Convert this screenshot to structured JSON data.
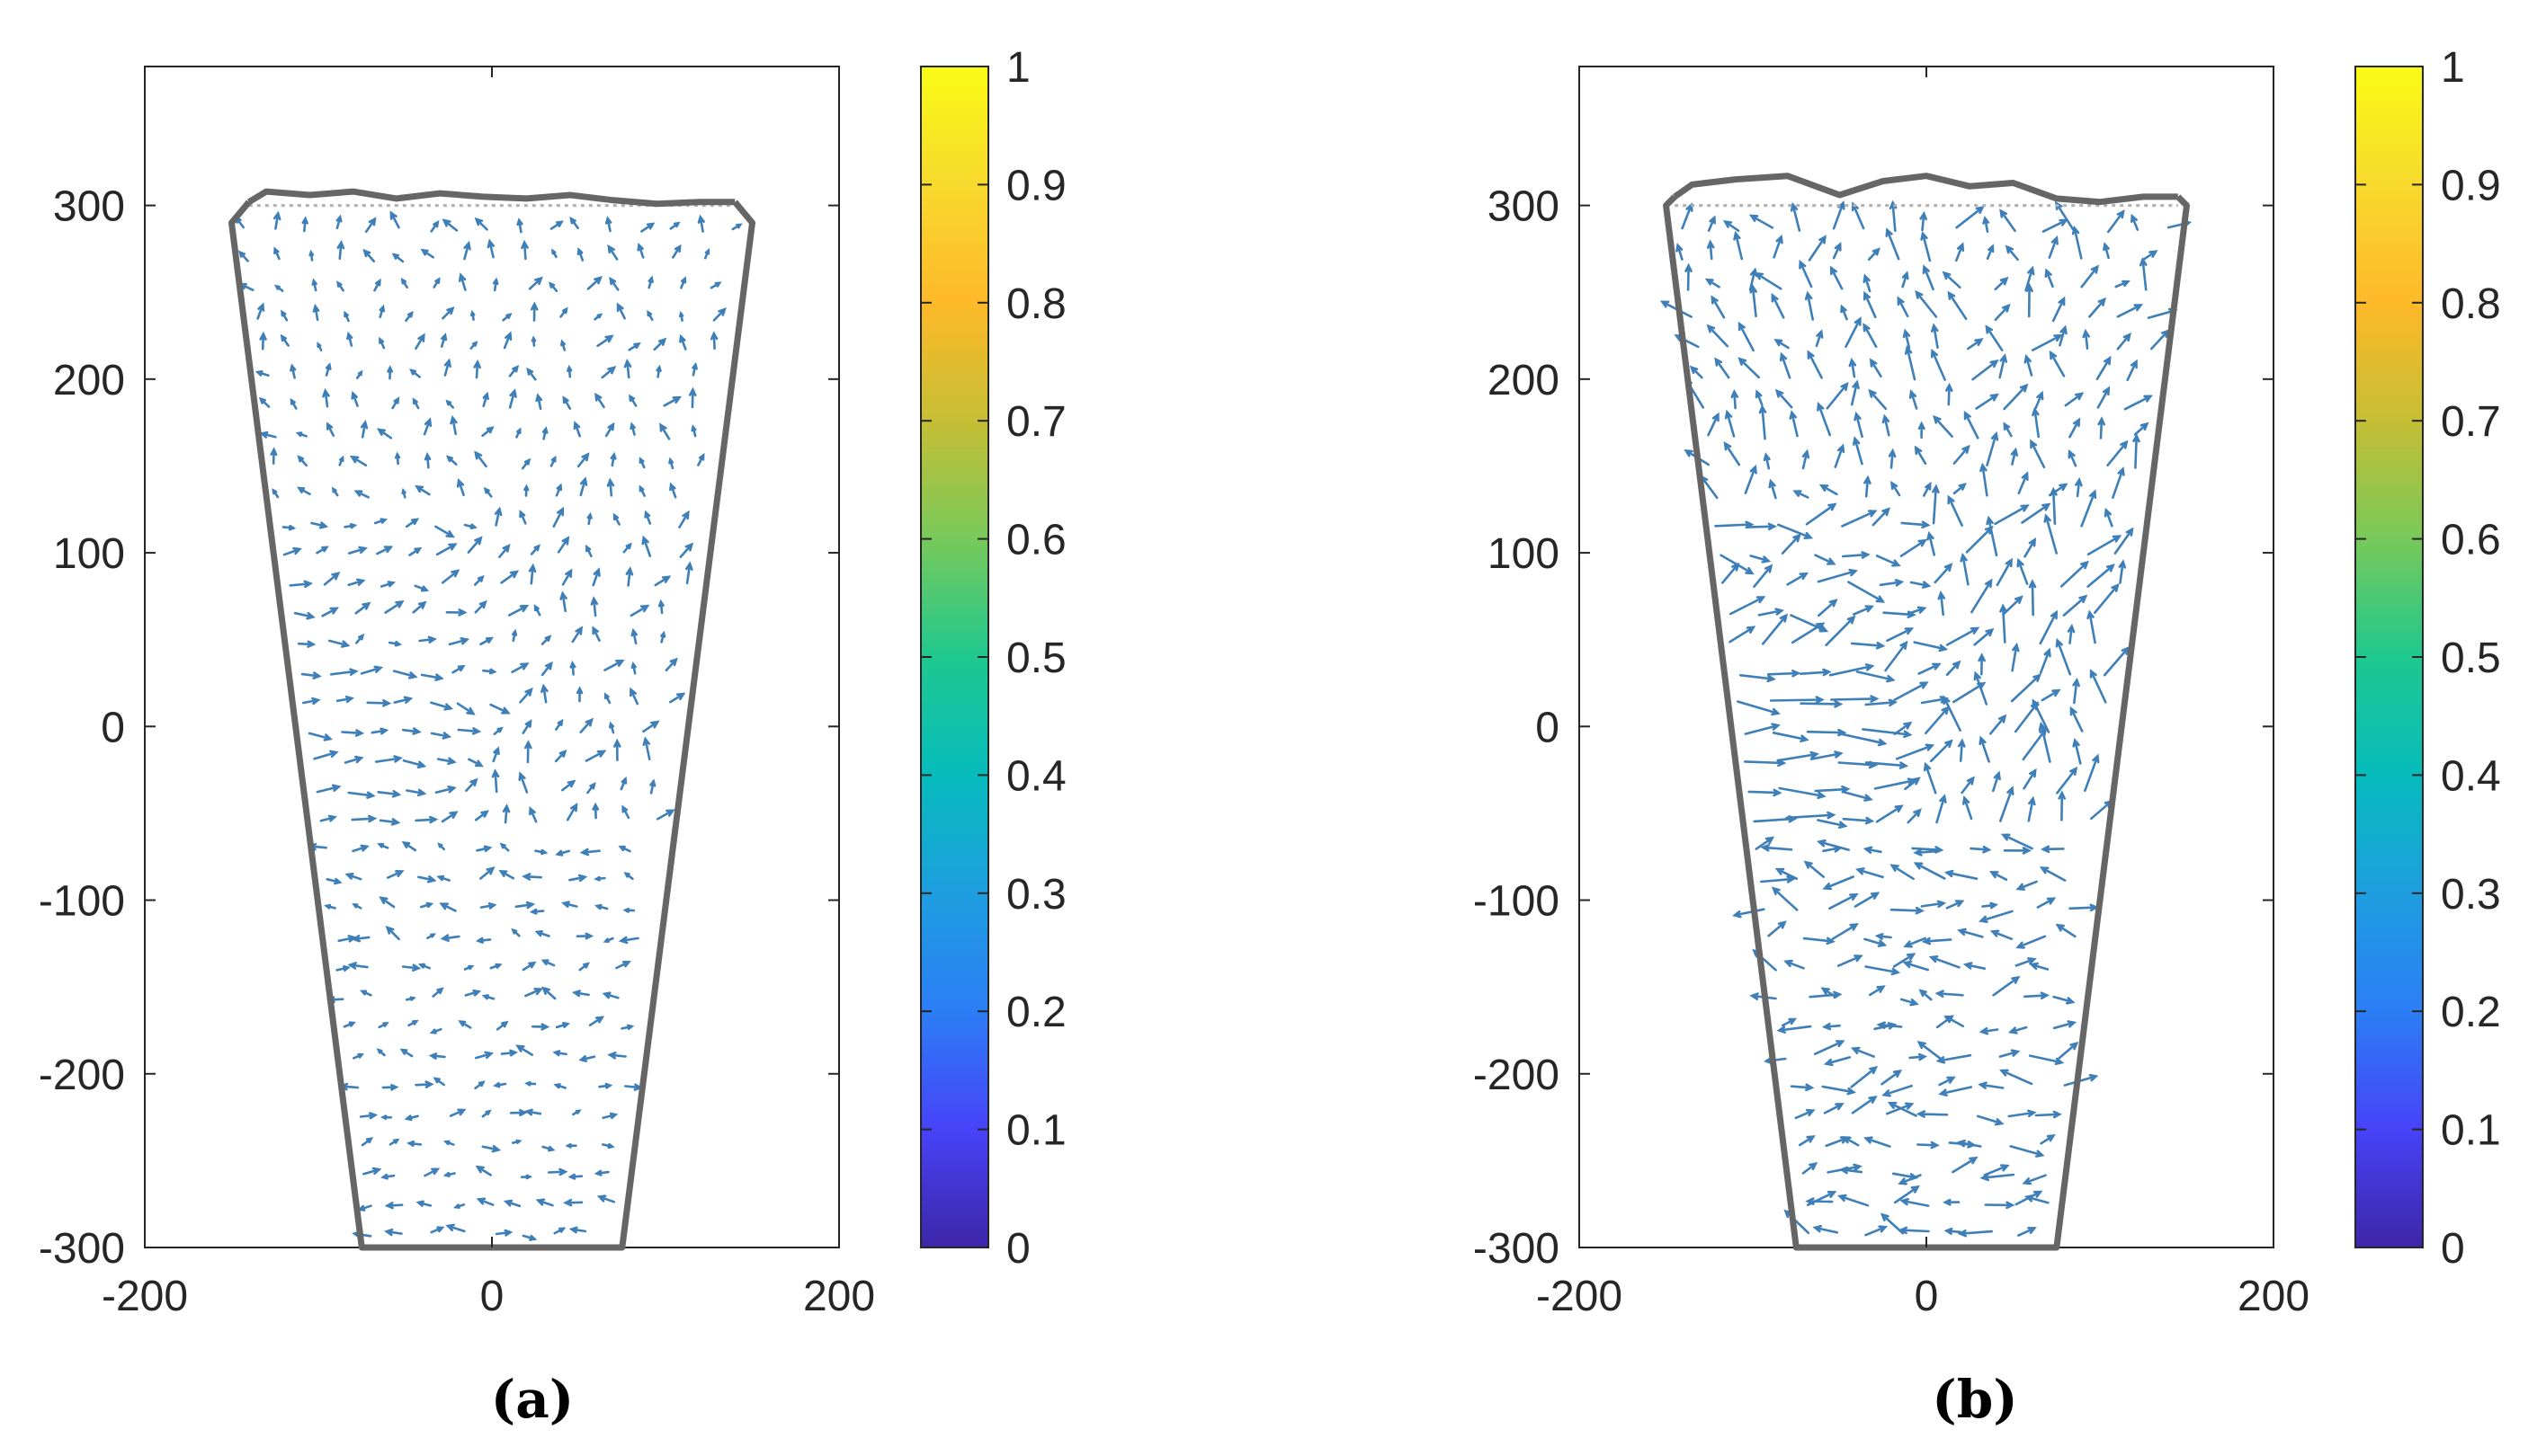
{
  "chart_data": [
    {
      "type": "quiver",
      "panel_label": "(a)",
      "xlim": [
        -200,
        200
      ],
      "ylim": [
        -300,
        380
      ],
      "xticks": [
        -200,
        0,
        200
      ],
      "yticks": [
        -300,
        -200,
        -100,
        0,
        100,
        200,
        300
      ],
      "grid": false,
      "vessel_outline": [
        [
          -140,
          302
        ],
        [
          -150,
          290
        ],
        [
          -75,
          -300
        ],
        [
          75,
          -300
        ],
        [
          150,
          290
        ],
        [
          140,
          302
        ]
      ],
      "surface_profile": [
        [
          -140,
          302
        ],
        [
          -130,
          308
        ],
        [
          -105,
          306
        ],
        [
          -80,
          308
        ],
        [
          -55,
          304
        ],
        [
          -30,
          307
        ],
        [
          -5,
          305
        ],
        [
          20,
          304
        ],
        [
          45,
          306
        ],
        [
          70,
          303
        ],
        [
          95,
          301
        ],
        [
          120,
          302
        ],
        [
          140,
          302
        ]
      ],
      "free_surface_level": 300,
      "vector_color": "#3f7fb8",
      "magnitude_scale": 1.0,
      "colorbar": {
        "limits": [
          0,
          1
        ],
        "ticks": [
          "0",
          "0.1",
          "0.2",
          "0.3",
          "0.4",
          "0.5",
          "0.6",
          "0.7",
          "0.8",
          "0.9",
          "1"
        ],
        "colormap": "parula",
        "stops": [
          "#3e26a8",
          "#4743f8",
          "#2c7ef6",
          "#1e9ee0",
          "#06bcbc",
          "#1fc88f",
          "#78c95a",
          "#c6be34",
          "#feb929",
          "#f8d92d",
          "#f9fb15"
        ]
      }
    },
    {
      "type": "quiver",
      "panel_label": "(b)",
      "xlim": [
        -200,
        200
      ],
      "ylim": [
        -300,
        380
      ],
      "xticks": [
        -200,
        0,
        200
      ],
      "yticks": [
        -300,
        -200,
        -100,
        0,
        100,
        200,
        300
      ],
      "grid": false,
      "vessel_outline": [
        [
          -145,
          305
        ],
        [
          -150,
          300
        ],
        [
          -75,
          -300
        ],
        [
          75,
          -300
        ],
        [
          150,
          300
        ],
        [
          145,
          305
        ]
      ],
      "surface_profile": [
        [
          -145,
          305
        ],
        [
          -135,
          312
        ],
        [
          -110,
          315
        ],
        [
          -80,
          317
        ],
        [
          -50,
          306
        ],
        [
          -25,
          314
        ],
        [
          0,
          317
        ],
        [
          25,
          311
        ],
        [
          50,
          313
        ],
        [
          75,
          304
        ],
        [
          100,
          302
        ],
        [
          125,
          305
        ],
        [
          145,
          305
        ]
      ],
      "free_surface_level": 300,
      "vector_color": "#3f7fb8",
      "magnitude_scale": 1.9,
      "colorbar": {
        "limits": [
          0,
          1
        ],
        "ticks": [
          "0",
          "0.1",
          "0.2",
          "0.3",
          "0.4",
          "0.5",
          "0.6",
          "0.7",
          "0.8",
          "0.9",
          "1"
        ],
        "colormap": "parula",
        "stops": [
          "#3e26a8",
          "#4743f8",
          "#2c7ef6",
          "#1e9ee0",
          "#06bcbc",
          "#1fc88f",
          "#78c95a",
          "#c6be34",
          "#feb929",
          "#f8d92d",
          "#f9fb15"
        ]
      }
    }
  ]
}
